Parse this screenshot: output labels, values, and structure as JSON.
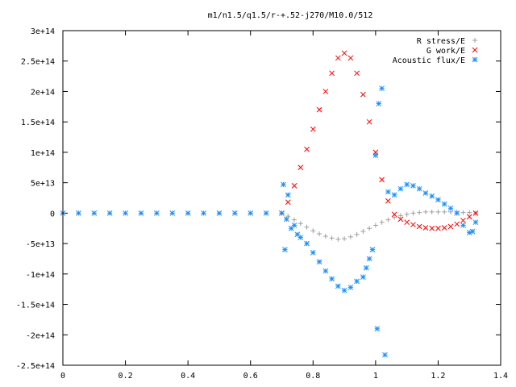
{
  "chart_data": {
    "type": "scatter",
    "title": "m1/n1.5/q1.5/r-+.52-j270/M10.0/512",
    "xlabel": "",
    "ylabel": "",
    "xlim": [
      0,
      1.4
    ],
    "ylim": [
      -250000000000000.0,
      300000000000000.0
    ],
    "xticks": [
      0,
      0.2,
      0.4,
      0.6,
      0.8,
      1,
      1.2,
      1.4
    ],
    "xtick_labels": [
      "0",
      "0.2",
      "0.4",
      "0.6",
      "0.8",
      "1",
      "1.2",
      "1.4"
    ],
    "yticks": [
      -250000000000000.0,
      -200000000000000.0,
      -150000000000000.0,
      -100000000000000.0,
      -50000000000000.0,
      0,
      50000000000000.0,
      100000000000000.0,
      150000000000000.0,
      200000000000000.0,
      250000000000000.0,
      300000000000000.0
    ],
    "ytick_labels": [
      "-2.5e+14",
      "-2e+14",
      "-1.5e+14",
      "-1e+14",
      "-5e+13",
      "0",
      "5e+13",
      "1e+14",
      "1.5e+14",
      "2e+14",
      "2.5e+14",
      "3e+14"
    ],
    "grid": false,
    "legend_position": "top-right",
    "series": [
      {
        "name": "R stress/E",
        "marker": "plus",
        "color": "#a0a0a0",
        "x": [
          0.7,
          0.72,
          0.74,
          0.76,
          0.78,
          0.8,
          0.82,
          0.84,
          0.86,
          0.88,
          0.9,
          0.92,
          0.94,
          0.96,
          0.98,
          1.0,
          1.02,
          1.04,
          1.06,
          1.08,
          1.1,
          1.12,
          1.14,
          1.16,
          1.18,
          1.2,
          1.22,
          1.24,
          1.26,
          1.28,
          1.3,
          1.32
        ],
        "y": [
          0,
          -5000000000000.0,
          -11000000000000.0,
          -17000000000000.0,
          -23000000000000.0,
          -29000000000000.0,
          -34000000000000.0,
          -38000000000000.0,
          -41000000000000.0,
          -43000000000000.0,
          -42000000000000.0,
          -39000000000000.0,
          -35000000000000.0,
          -30000000000000.0,
          -25000000000000.0,
          -20000000000000.0,
          -15000000000000.0,
          -11000000000000.0,
          -7000000000000.0,
          -4000000000000.0,
          -2000000000000.0,
          0,
          1000000000000.0,
          2000000000000.0,
          2000000000000.0,
          2000000000000.0,
          2000000000000.0,
          2000000000000.0,
          2000000000000.0,
          1000000000000.0,
          1000000000000.0,
          0
        ]
      },
      {
        "name": "G work/E",
        "marker": "cross",
        "color": "#ff0000",
        "x": [
          0.7,
          0.72,
          0.74,
          0.76,
          0.78,
          0.8,
          0.82,
          0.84,
          0.86,
          0.88,
          0.9,
          0.92,
          0.94,
          0.96,
          0.98,
          1.0,
          1.02,
          1.04,
          1.06,
          1.08,
          1.1,
          1.12,
          1.14,
          1.16,
          1.18,
          1.2,
          1.22,
          1.24,
          1.26,
          1.28,
          1.3,
          1.32
        ],
        "y": [
          0,
          18000000000000.0,
          45000000000000.0,
          75000000000000.0,
          105000000000000.0,
          138000000000000.0,
          170000000000000.0,
          200000000000000.0,
          230000000000000.0,
          255000000000000.0,
          263000000000000.0,
          255000000000000.0,
          230000000000000.0,
          195000000000000.0,
          150000000000000.0,
          100000000000000.0,
          55000000000000.0,
          20000000000000.0,
          -2000000000000.0,
          -10000000000000.0,
          -15000000000000.0,
          -19000000000000.0,
          -22000000000000.0,
          -24000000000000.0,
          -25000000000000.0,
          -25000000000000.0,
          -24000000000000.0,
          -22000000000000.0,
          -18000000000000.0,
          -12000000000000.0,
          -6000000000000.0,
          0
        ]
      },
      {
        "name": "Acoustic flux/E",
        "marker": "star",
        "color": "#1a8fff",
        "x": [
          0.0,
          0.05,
          0.1,
          0.15,
          0.2,
          0.25,
          0.3,
          0.35,
          0.4,
          0.45,
          0.5,
          0.55,
          0.6,
          0.65,
          0.7,
          0.705,
          0.71,
          0.715,
          0.72,
          0.73,
          0.74,
          0.75,
          0.76,
          0.78,
          0.8,
          0.82,
          0.84,
          0.86,
          0.88,
          0.9,
          0.92,
          0.94,
          0.96,
          0.97,
          0.98,
          0.99,
          1.0,
          1.005,
          1.01,
          1.02,
          1.03,
          1.04,
          1.06,
          1.08,
          1.1,
          1.12,
          1.14,
          1.16,
          1.18,
          1.2,
          1.22,
          1.24,
          1.26,
          1.28,
          1.3,
          1.31,
          1.32
        ],
        "y": [
          0,
          0,
          0,
          0,
          0,
          0,
          0,
          0,
          0,
          0,
          0,
          0,
          0,
          0,
          0,
          47000000000000.0,
          -60000000000000.0,
          -10000000000000.0,
          30000000000000.0,
          -25000000000000.0,
          -20000000000000.0,
          -35000000000000.0,
          -40000000000000.0,
          -50000000000000.0,
          -65000000000000.0,
          -80000000000000.0,
          -95000000000000.0,
          -108000000000000.0,
          -120000000000000.0,
          -127000000000000.0,
          -122000000000000.0,
          -112000000000000.0,
          -105000000000000.0,
          -90000000000000.0,
          -75000000000000.0,
          -60000000000000.0,
          95000000000000.0,
          -190000000000000.0,
          180000000000000.0,
          205000000000000.0,
          -233000000000000.0,
          35000000000000.0,
          30000000000000.0,
          40000000000000.0,
          47000000000000.0,
          45000000000000.0,
          40000000000000.0,
          33000000000000.0,
          28000000000000.0,
          22000000000000.0,
          15000000000000.0,
          8000000000000.0,
          0,
          -20000000000000.0,
          -32000000000000.0,
          -30000000000000.0,
          -15000000000000.0
        ]
      }
    ]
  }
}
